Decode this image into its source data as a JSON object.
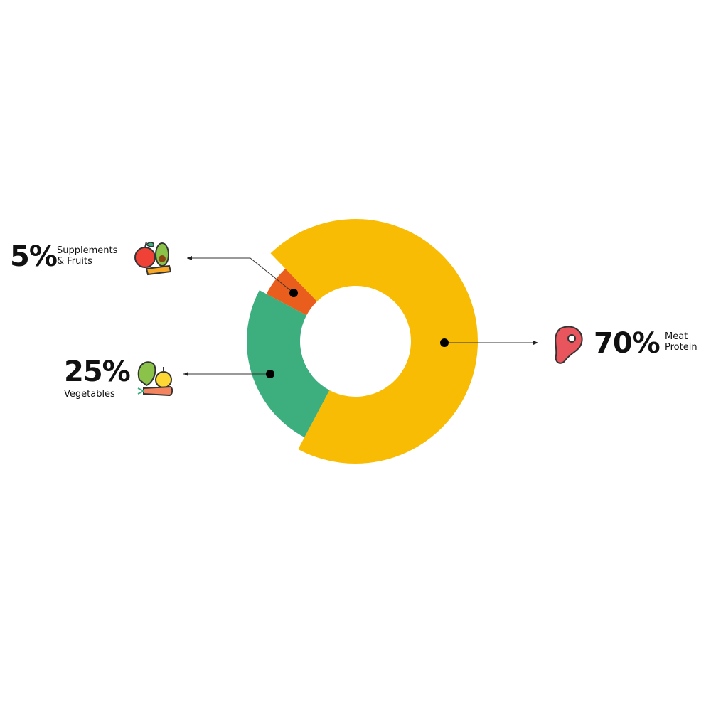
{
  "chart_data": {
    "type": "pie",
    "donut": true,
    "title": "",
    "slices": [
      {
        "label": "Meat Protein",
        "pct_label": "70%",
        "value": 70,
        "color": "#F9BC05",
        "icon": "steak-icon"
      },
      {
        "label": "Vegetables",
        "pct_label": "25%",
        "value": 25,
        "color": "#3DAE7D",
        "icon": "vegetables-icon"
      },
      {
        "label": "Supplements & Fruits",
        "pct_label": "5%",
        "value": 5,
        "color": "#E95E1C",
        "icon": "fruits-icon"
      }
    ],
    "label_lines": [
      "Supplements",
      "& Fruits"
    ],
    "meat_lines": [
      "Meat",
      "Protein"
    ]
  }
}
